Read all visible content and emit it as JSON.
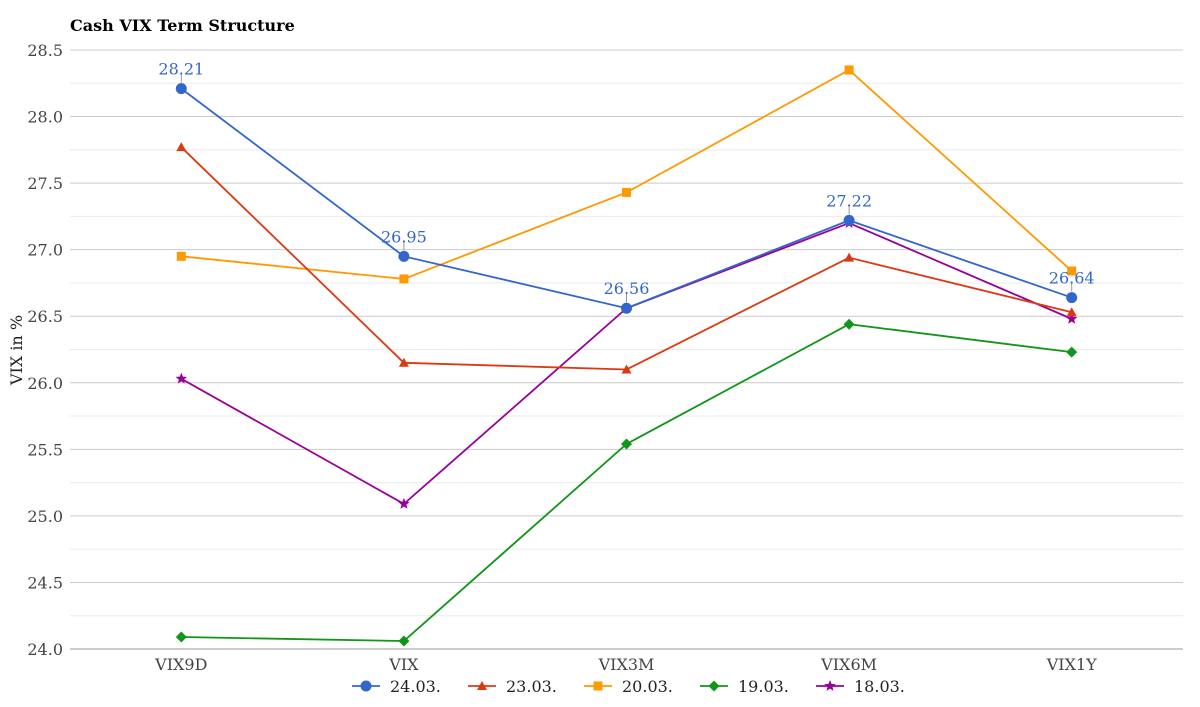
{
  "chart_data": {
    "type": "line",
    "title": "Cash VIX Term Structure",
    "xlabel": "",
    "ylabel": "VIX in %",
    "categories": [
      "VIX9D",
      "VIX",
      "VIX3M",
      "VIX6M",
      "VIX1Y"
    ],
    "ylim": [
      24.0,
      28.5
    ],
    "yticks": [
      24.0,
      24.5,
      25.0,
      25.5,
      26.0,
      26.5,
      27.0,
      27.5,
      28.0,
      28.5
    ],
    "grid": true,
    "legend_position": "bottom",
    "series": [
      {
        "name": "24.03.",
        "color": "#3366cc",
        "marker": "circle",
        "values": [
          28.21,
          26.95,
          26.56,
          27.22,
          26.64
        ],
        "labeled": true
      },
      {
        "name": "23.03.",
        "color": "#dc3912",
        "marker": "triangle",
        "values": [
          27.77,
          26.15,
          26.1,
          26.94,
          26.53
        ],
        "labeled": false
      },
      {
        "name": "20.03.",
        "color": "#ff9900",
        "marker": "square",
        "values": [
          26.95,
          26.78,
          27.43,
          28.35,
          26.84
        ],
        "labeled": false
      },
      {
        "name": "19.03.",
        "color": "#109618",
        "marker": "diamond",
        "values": [
          24.09,
          24.06,
          25.54,
          26.44,
          26.23
        ],
        "labeled": false
      },
      {
        "name": "18.03.",
        "color": "#990099",
        "marker": "star",
        "values": [
          26.03,
          25.09,
          26.56,
          27.2,
          26.48
        ],
        "labeled": false
      }
    ]
  }
}
